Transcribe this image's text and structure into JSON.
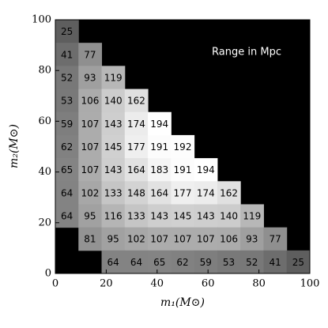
{
  "chart_data": {
    "type": "heatmap",
    "annotation": "Range in Mpc",
    "xlabel": "m₁(M⊙)",
    "ylabel": "m₂(M⊙)",
    "xlim": [
      0,
      100
    ],
    "ylim": [
      0,
      100
    ],
    "xticks": [
      0,
      20,
      40,
      60,
      80,
      100
    ],
    "yticks": [
      0,
      20,
      40,
      60,
      80,
      100
    ],
    "rows": [
      [
        25,
        null,
        null,
        null,
        null,
        null,
        null,
        null,
        null,
        null,
        null
      ],
      [
        41,
        77,
        null,
        null,
        null,
        null,
        null,
        null,
        null,
        null,
        null
      ],
      [
        52,
        93,
        119,
        null,
        null,
        null,
        null,
        null,
        null,
        null,
        null
      ],
      [
        53,
        106,
        140,
        162,
        null,
        null,
        null,
        null,
        null,
        null,
        null
      ],
      [
        59,
        107,
        143,
        174,
        194,
        null,
        null,
        null,
        null,
        null,
        null
      ],
      [
        62,
        107,
        145,
        177,
        191,
        192,
        null,
        null,
        null,
        null,
        null
      ],
      [
        65,
        107,
        143,
        164,
        183,
        191,
        194,
        null,
        null,
        null,
        null
      ],
      [
        64,
        102,
        133,
        148,
        164,
        177,
        174,
        162,
        null,
        null,
        null
      ],
      [
        64,
        95,
        116,
        133,
        143,
        145,
        143,
        140,
        119,
        null,
        null
      ],
      [
        null,
        81,
        95,
        102,
        107,
        107,
        107,
        106,
        93,
        77,
        null
      ],
      [
        null,
        null,
        64,
        64,
        65,
        62,
        59,
        53,
        52,
        41,
        25
      ]
    ]
  }
}
